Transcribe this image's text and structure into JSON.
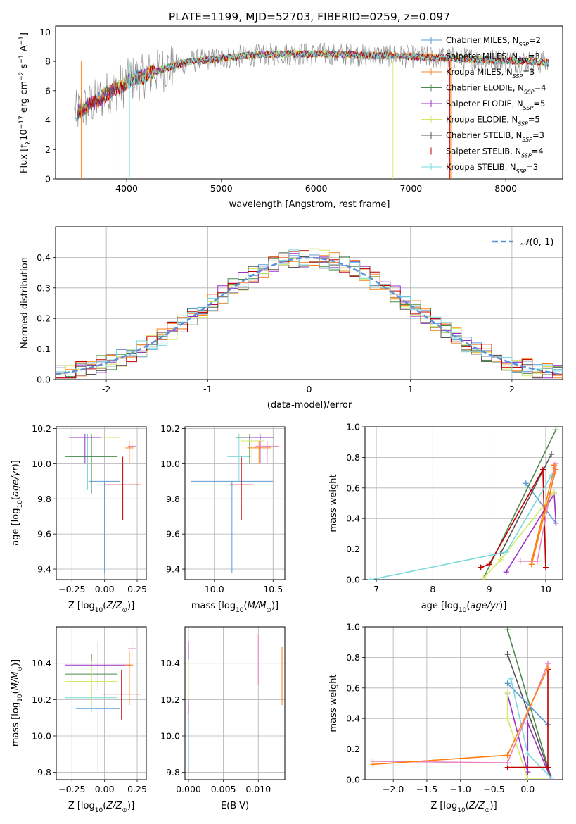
{
  "title": "PLATE=1199, MJD=52703, FIBERID=0259, z=0.097",
  "colors": {
    "cm": "#5b9bd5",
    "sm": "#ff7f0e",
    "km": "#f08a3a",
    "ce": "#4c8a4c",
    "se": "#9b30c8",
    "ke": "#d4ea66",
    "cs": "#555555",
    "ss": "#c00000",
    "ks": "#7bd8dc",
    "normal": "#5b8fd6",
    "grid": "#b0b0b0",
    "pink": "#e884c0"
  },
  "models": [
    {
      "key": "cm",
      "name": "Chabrier MILES",
      "nssp": "2"
    },
    {
      "key": "sm",
      "name": "Salpeter MILES",
      "nssp": "3"
    },
    {
      "key": "km",
      "name": "Kroupa MILES",
      "nssp": "3"
    },
    {
      "key": "ce",
      "name": "Chabrier ELODIE",
      "nssp": "4"
    },
    {
      "key": "se",
      "name": "Salpeter ELODIE",
      "nssp": "5"
    },
    {
      "key": "ke",
      "name": "Kroupa ELODIE",
      "nssp": "5"
    },
    {
      "key": "cs",
      "name": "Chabrier STELIB",
      "nssp": "3"
    },
    {
      "key": "ss",
      "name": "Salpeter STELIB",
      "nssp": "4"
    },
    {
      "key": "ks",
      "name": "Kroupa STELIB",
      "nssp": "3"
    }
  ],
  "chart_data": [
    {
      "id": "spectrum",
      "type": "line",
      "title": "PLATE=1199, MJD=52703, FIBERID=0259, z=0.097",
      "xlabel": "wavelength [Angstrom, rest frame]",
      "ylabel": "Flux [f_λ 10^-17 erg cm^-2 s^-1 A^-1]",
      "xlim": [
        3250,
        8600
      ],
      "ylim": [
        0,
        10.4
      ],
      "xticks": [
        4000,
        5000,
        6000,
        7000,
        8000
      ],
      "yticks": [
        0,
        2,
        4,
        6,
        8,
        10
      ],
      "continuum": [
        [
          3450,
          4.4
        ],
        [
          3550,
          4.8
        ],
        [
          3650,
          5.2
        ],
        [
          3750,
          5.6
        ],
        [
          3850,
          6.1
        ],
        [
          3950,
          6.3
        ],
        [
          4050,
          6.8
        ],
        [
          4150,
          6.9
        ],
        [
          4300,
          7.3
        ],
        [
          4500,
          7.7
        ],
        [
          4700,
          8.0
        ],
        [
          5000,
          8.2
        ],
        [
          5300,
          8.4
        ],
        [
          5600,
          8.5
        ],
        [
          5900,
          8.5
        ],
        [
          6200,
          8.5
        ],
        [
          6500,
          8.4
        ],
        [
          6800,
          8.4
        ],
        [
          7100,
          8.3
        ],
        [
          7500,
          8.2
        ],
        [
          7800,
          8.1
        ],
        [
          8200,
          8.0
        ],
        [
          8450,
          7.9
        ]
      ],
      "legend": "right"
    },
    {
      "id": "residuals",
      "type": "histogram",
      "xlabel": "(data-model)/error",
      "ylabel": "Normed distribution",
      "xlim": [
        -2.5,
        2.5
      ],
      "ylim": [
        0,
        0.5
      ],
      "xticks": [
        -2,
        -1,
        0,
        1,
        2
      ],
      "yticks": [
        0.0,
        0.1,
        0.2,
        0.3,
        0.4
      ],
      "bin_width": 0.1,
      "curve": "N(0,1)",
      "legend": "top-right"
    },
    {
      "id": "age_vs_Z",
      "type": "scatter",
      "xlabel": "Z [log10(Z/Z⊙)]",
      "ylabel": "age [log10(age/yr)]",
      "xlim": [
        -0.37,
        0.32
      ],
      "ylim": [
        9.34,
        10.21
      ],
      "xticks": [
        -0.25,
        0.0,
        0.25
      ],
      "xticklabels": [
        "−0.25",
        "0.00",
        "0.25"
      ],
      "yticks": [
        9.4,
        9.6,
        9.8,
        10.0,
        10.2
      ],
      "points": [
        {
          "c": "cm",
          "x": 0.0,
          "xerr": 0.12,
          "y": 9.9,
          "ylo": 9.38,
          "yhi": 9.9
        },
        {
          "c": "ks",
          "x": -0.13,
          "xerr": 0.13,
          "y": 10.04,
          "ylo": 9.85,
          "yhi": 10.17
        },
        {
          "c": "ce",
          "x": -0.1,
          "xerr": 0.2,
          "y": 10.04,
          "ylo": 9.83,
          "yhi": 10.17
        },
        {
          "c": "ke",
          "x": -0.08,
          "xerr": 0.2,
          "y": 10.15,
          "ylo": 10.15,
          "yhi": 10.17
        },
        {
          "c": "se",
          "x": -0.15,
          "xerr": 0.12,
          "y": 10.15,
          "ylo": 10.0,
          "yhi": 10.17
        },
        {
          "c": "ss",
          "x": 0.14,
          "xerr": 0.14,
          "y": 9.88,
          "ylo": 9.68,
          "yhi": 10.04
        },
        {
          "c": "sm",
          "x": 0.19,
          "xerr": 0.03,
          "y": 10.09,
          "ylo": 10.0,
          "yhi": 10.13
        },
        {
          "c": "pink",
          "x": 0.21,
          "xerr": 0.03,
          "y": 10.1,
          "ylo": 10.0,
          "yhi": 10.13
        }
      ]
    },
    {
      "id": "age_vs_mass",
      "type": "scatter",
      "xlabel": "mass [log10(M/M⊙)]",
      "ylabel": "",
      "xlim": [
        9.75,
        10.6
      ],
      "ylim": [
        9.34,
        10.21
      ],
      "xticks": [
        10.0,
        10.5
      ],
      "xticklabels": [
        "10.0",
        "10.5"
      ],
      "yticks": [
        9.4,
        9.6,
        9.8,
        10.0,
        10.2
      ],
      "points": [
        {
          "c": "cm",
          "x": 10.15,
          "xerr": 0.35,
          "y": 9.9,
          "ylo": 9.38,
          "yhi": 9.9
        },
        {
          "c": "ss",
          "x": 10.23,
          "xerr": 0.1,
          "y": 9.88,
          "ylo": 9.68,
          "yhi": 10.04
        },
        {
          "c": "ks",
          "x": 10.21,
          "xerr": 0.1,
          "y": 10.04,
          "ylo": 9.9,
          "yhi": 10.17
        },
        {
          "c": "ce",
          "x": 10.3,
          "xerr": 0.12,
          "y": 10.15,
          "ylo": 10.0,
          "yhi": 10.17
        },
        {
          "c": "se",
          "x": 10.39,
          "xerr": 0.12,
          "y": 10.15,
          "ylo": 10.0,
          "yhi": 10.17
        },
        {
          "c": "ke",
          "x": 10.32,
          "xerr": 0.1,
          "y": 10.13,
          "ylo": 10.0,
          "yhi": 10.17
        },
        {
          "c": "sm",
          "x": 10.38,
          "xerr": 0.1,
          "y": 10.09,
          "ylo": 10.0,
          "yhi": 10.13
        },
        {
          "c": "pink",
          "x": 10.45,
          "xerr": 0.1,
          "y": 10.1,
          "ylo": 10.0,
          "yhi": 10.13
        }
      ]
    },
    {
      "id": "weight_vs_age",
      "type": "line",
      "xlabel": "age [log10(age/yr)]",
      "ylabel": "mass weight",
      "xlim": [
        6.8,
        10.3
      ],
      "ylim": [
        0,
        1.0
      ],
      "xticks": [
        7,
        8,
        9,
        10
      ],
      "yticks": [
        0.0,
        0.2,
        0.4,
        0.6,
        0.8,
        1.0
      ],
      "series": [
        {
          "c": "cm",
          "pts": [
            [
              9.65,
              0.63
            ],
            [
              10.18,
              0.37
            ]
          ]
        },
        {
          "c": "sm",
          "pts": [
            [
              9.75,
              0.12
            ],
            [
              10.15,
              0.73
            ],
            [
              10.15,
              0.75
            ]
          ]
        },
        {
          "c": "ce",
          "pts": [
            [
              8.9,
              0.01
            ],
            [
              10.18,
              0.98
            ]
          ]
        },
        {
          "c": "se",
          "pts": [
            [
              9.3,
              0.05
            ],
            [
              10.15,
              0.56
            ],
            [
              10.18,
              0.37
            ]
          ]
        },
        {
          "c": "ke",
          "pts": [
            [
              8.9,
              0.01
            ],
            [
              9.2,
              0.13
            ],
            [
              10.15,
              0.57
            ]
          ]
        },
        {
          "c": "cs",
          "pts": [
            [
              9.2,
              0.17
            ],
            [
              10.1,
              0.82
            ]
          ]
        },
        {
          "c": "ss",
          "pts": [
            [
              8.85,
              0.08
            ],
            [
              9.0,
              0.1
            ],
            [
              9.95,
              0.72
            ],
            [
              10.0,
              0.08
            ]
          ]
        },
        {
          "c": "ks",
          "pts": [
            [
              6.9,
              0.0
            ],
            [
              9.3,
              0.18
            ],
            [
              10.1,
              0.68
            ]
          ]
        },
        {
          "c": "pink",
          "pts": [
            [
              9.55,
              0.12
            ],
            [
              9.85,
              0.12
            ],
            [
              10.18,
              0.76
            ]
          ]
        },
        {
          "c": "sm",
          "pts": [
            [
              9.75,
              0.1
            ],
            [
              10.18,
              0.72
            ]
          ]
        }
      ]
    },
    {
      "id": "mass_vs_Z",
      "type": "scatter",
      "xlabel": "Z [log10(Z/Z⊙)]",
      "ylabel": "mass [log10(M/M⊙)]",
      "xlim": [
        -0.37,
        0.32
      ],
      "ylim": [
        9.76,
        10.6
      ],
      "xticks": [
        -0.25,
        0.0,
        0.25
      ],
      "xticklabels": [
        "−0.25",
        "0.00",
        "0.25"
      ],
      "yticks": [
        9.8,
        10.0,
        10.2,
        10.4
      ],
      "points": [
        {
          "c": "cm",
          "x": -0.05,
          "xerr": 0.17,
          "y": 10.15,
          "ylo": 9.8,
          "yhi": 10.15
        },
        {
          "c": "ks",
          "x": -0.1,
          "xerr": 0.2,
          "y": 10.21,
          "ylo": 10.13,
          "yhi": 10.29
        },
        {
          "c": "ce",
          "x": -0.1,
          "xerr": 0.2,
          "y": 10.34,
          "ylo": 10.18,
          "yhi": 10.45
        },
        {
          "c": "ke",
          "x": -0.1,
          "xerr": 0.2,
          "y": 10.3,
          "ylo": 10.18,
          "yhi": 10.41
        },
        {
          "c": "se",
          "x": -0.05,
          "xerr": 0.25,
          "y": 10.39,
          "ylo": 10.25,
          "yhi": 10.52
        },
        {
          "c": "ss",
          "x": 0.13,
          "xerr": 0.15,
          "y": 10.23,
          "ylo": 10.09,
          "yhi": 10.36
        },
        {
          "c": "sm",
          "x": 0.19,
          "xerr": 0.03,
          "y": 10.39,
          "ylo": 10.17,
          "yhi": 10.47
        },
        {
          "c": "pink",
          "x": 0.21,
          "xerr": 0.03,
          "y": 10.48,
          "ylo": 10.42,
          "yhi": 10.54
        }
      ]
    },
    {
      "id": "mass_vs_EBV",
      "type": "scatter",
      "xlabel": "E(B-V)",
      "ylabel": "",
      "xlim": [
        -0.0005,
        0.0138
      ],
      "ylim": [
        9.76,
        10.6
      ],
      "xticks": [
        0.0,
        0.005,
        0.01
      ],
      "xticklabels": [
        "0.000",
        "0.005",
        "0.010"
      ],
      "yticks": [
        9.8,
        10.0,
        10.2,
        10.4
      ],
      "points": [
        {
          "c": "cm",
          "x": 0.0,
          "xerr": 0,
          "y": 10.15,
          "ylo": 9.8,
          "yhi": 10.15
        },
        {
          "c": "se",
          "x": 0.0,
          "xerr": 0,
          "y": 10.39,
          "ylo": 10.12,
          "yhi": 10.52
        },
        {
          "c": "ke",
          "x": 0.0,
          "xerr": 0,
          "y": 10.3,
          "ylo": 10.2,
          "yhi": 10.42
        },
        {
          "c": "pink",
          "x": 0.01,
          "xerr": 0,
          "y": 10.48,
          "ylo": 10.28,
          "yhi": 10.56
        },
        {
          "c": "sm",
          "x": 0.0134,
          "xerr": 0,
          "y": 10.39,
          "ylo": 10.17,
          "yhi": 10.49
        }
      ]
    },
    {
      "id": "weight_vs_Z",
      "type": "line",
      "xlabel": "Z [log10(Z/Z⊙)]",
      "ylabel": "mass weight",
      "xlim": [
        -2.42,
        0.52
      ],
      "ylim": [
        0,
        1.0
      ],
      "xticks": [
        -2.0,
        -1.5,
        -1.0,
        -0.5,
        0.0
      ],
      "xticklabels": [
        "−2.0",
        "−1.5",
        "−1.0",
        "−0.5",
        "0.0"
      ],
      "yticks": [
        0.0,
        0.2,
        0.4,
        0.6,
        0.8,
        1.0
      ],
      "series": [
        {
          "c": "ce",
          "pts": [
            [
              -0.3,
              0.98
            ],
            [
              0.35,
              0.01
            ]
          ]
        },
        {
          "c": "cs",
          "pts": [
            [
              -0.3,
              0.82
            ],
            [
              0.35,
              0.01
            ]
          ]
        },
        {
          "c": "cm",
          "pts": [
            [
              -0.3,
              0.63
            ],
            [
              0.3,
              0.36
            ]
          ]
        },
        {
          "c": "se",
          "pts": [
            [
              -0.3,
              0.56
            ],
            [
              -0.0,
              0.05
            ],
            [
              0.0,
              0.37
            ],
            [
              0.35,
              0.0
            ]
          ]
        },
        {
          "c": "ke",
          "pts": [
            [
              -0.3,
              0.57
            ],
            [
              -0.3,
              0.4
            ],
            [
              0.0,
              0.01
            ],
            [
              0.35,
              0.01
            ]
          ]
        },
        {
          "c": "ks",
          "pts": [
            [
              -0.25,
              0.66
            ],
            [
              0.0,
              0.17
            ],
            [
              0.35,
              0.01
            ]
          ]
        },
        {
          "c": "ss",
          "pts": [
            [
              -0.3,
              0.08
            ],
            [
              0.3,
              0.08
            ],
            [
              0.3,
              0.72
            ]
          ]
        },
        {
          "c": "pink",
          "pts": [
            [
              -2.3,
              0.12
            ],
            [
              -0.3,
              0.11
            ],
            [
              0.3,
              0.76
            ]
          ]
        },
        {
          "c": "sm",
          "pts": [
            [
              -2.3,
              0.1
            ],
            [
              -0.3,
              0.16
            ],
            [
              0.3,
              0.73
            ]
          ]
        }
      ]
    }
  ]
}
